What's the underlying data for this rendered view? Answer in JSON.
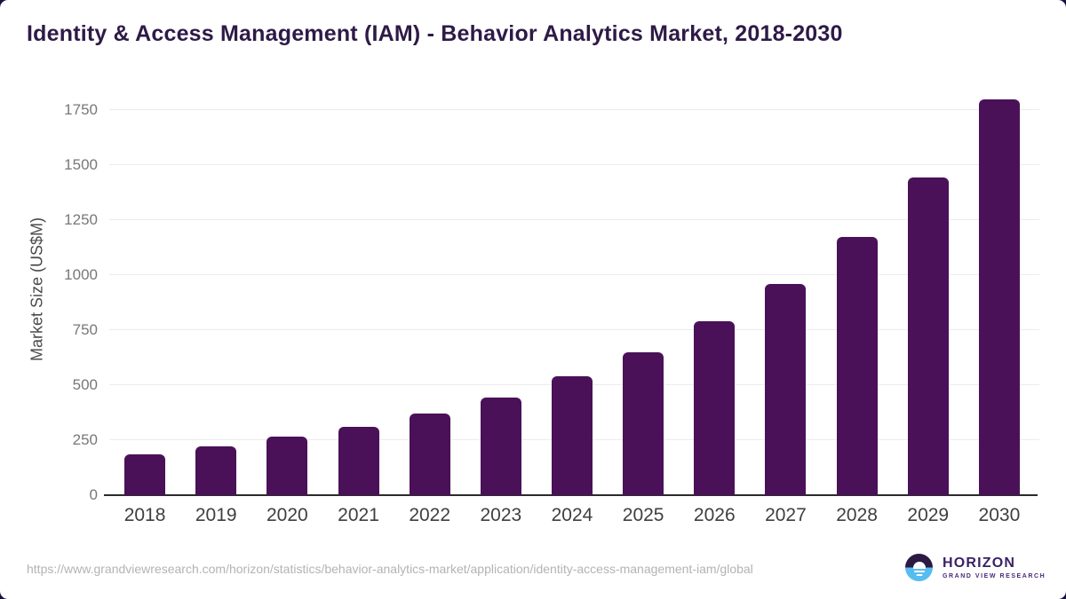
{
  "title": "Identity & Access Management (IAM) - Behavior Analytics Market, 2018-2030",
  "chart_data": {
    "type": "bar",
    "title": "Identity & Access Management (IAM) - Behavior Analytics Market, 2018-2030",
    "categories": [
      "2018",
      "2019",
      "2020",
      "2021",
      "2022",
      "2023",
      "2024",
      "2025",
      "2026",
      "2027",
      "2028",
      "2029",
      "2030"
    ],
    "values": [
      185,
      220,
      265,
      310,
      370,
      445,
      540,
      650,
      790,
      960,
      1175,
      1445,
      1800
    ],
    "xlabel": "",
    "ylabel": "Market Size (US$M)",
    "ylim": [
      0,
      1875
    ],
    "yticks": [
      0,
      250,
      500,
      750,
      1000,
      1250,
      1500,
      1750
    ],
    "grid": true,
    "legend_position": "none",
    "bar_color": "#4a1158"
  },
  "footer": {
    "source_url": "https://www.grandviewresearch.com/horizon/statistics/behavior-analytics-market/application/identity-access-management-iam/global",
    "logo": {
      "name": "HORIZON",
      "tagline": "GRAND VIEW RESEARCH"
    }
  },
  "colors": {
    "bar": "#4a1158",
    "title": "#2e1a47",
    "grid": "#ececec",
    "axis": "#2b2b2b",
    "logo_dark": "#2c1a45",
    "logo_blue": "#56bdf0"
  }
}
